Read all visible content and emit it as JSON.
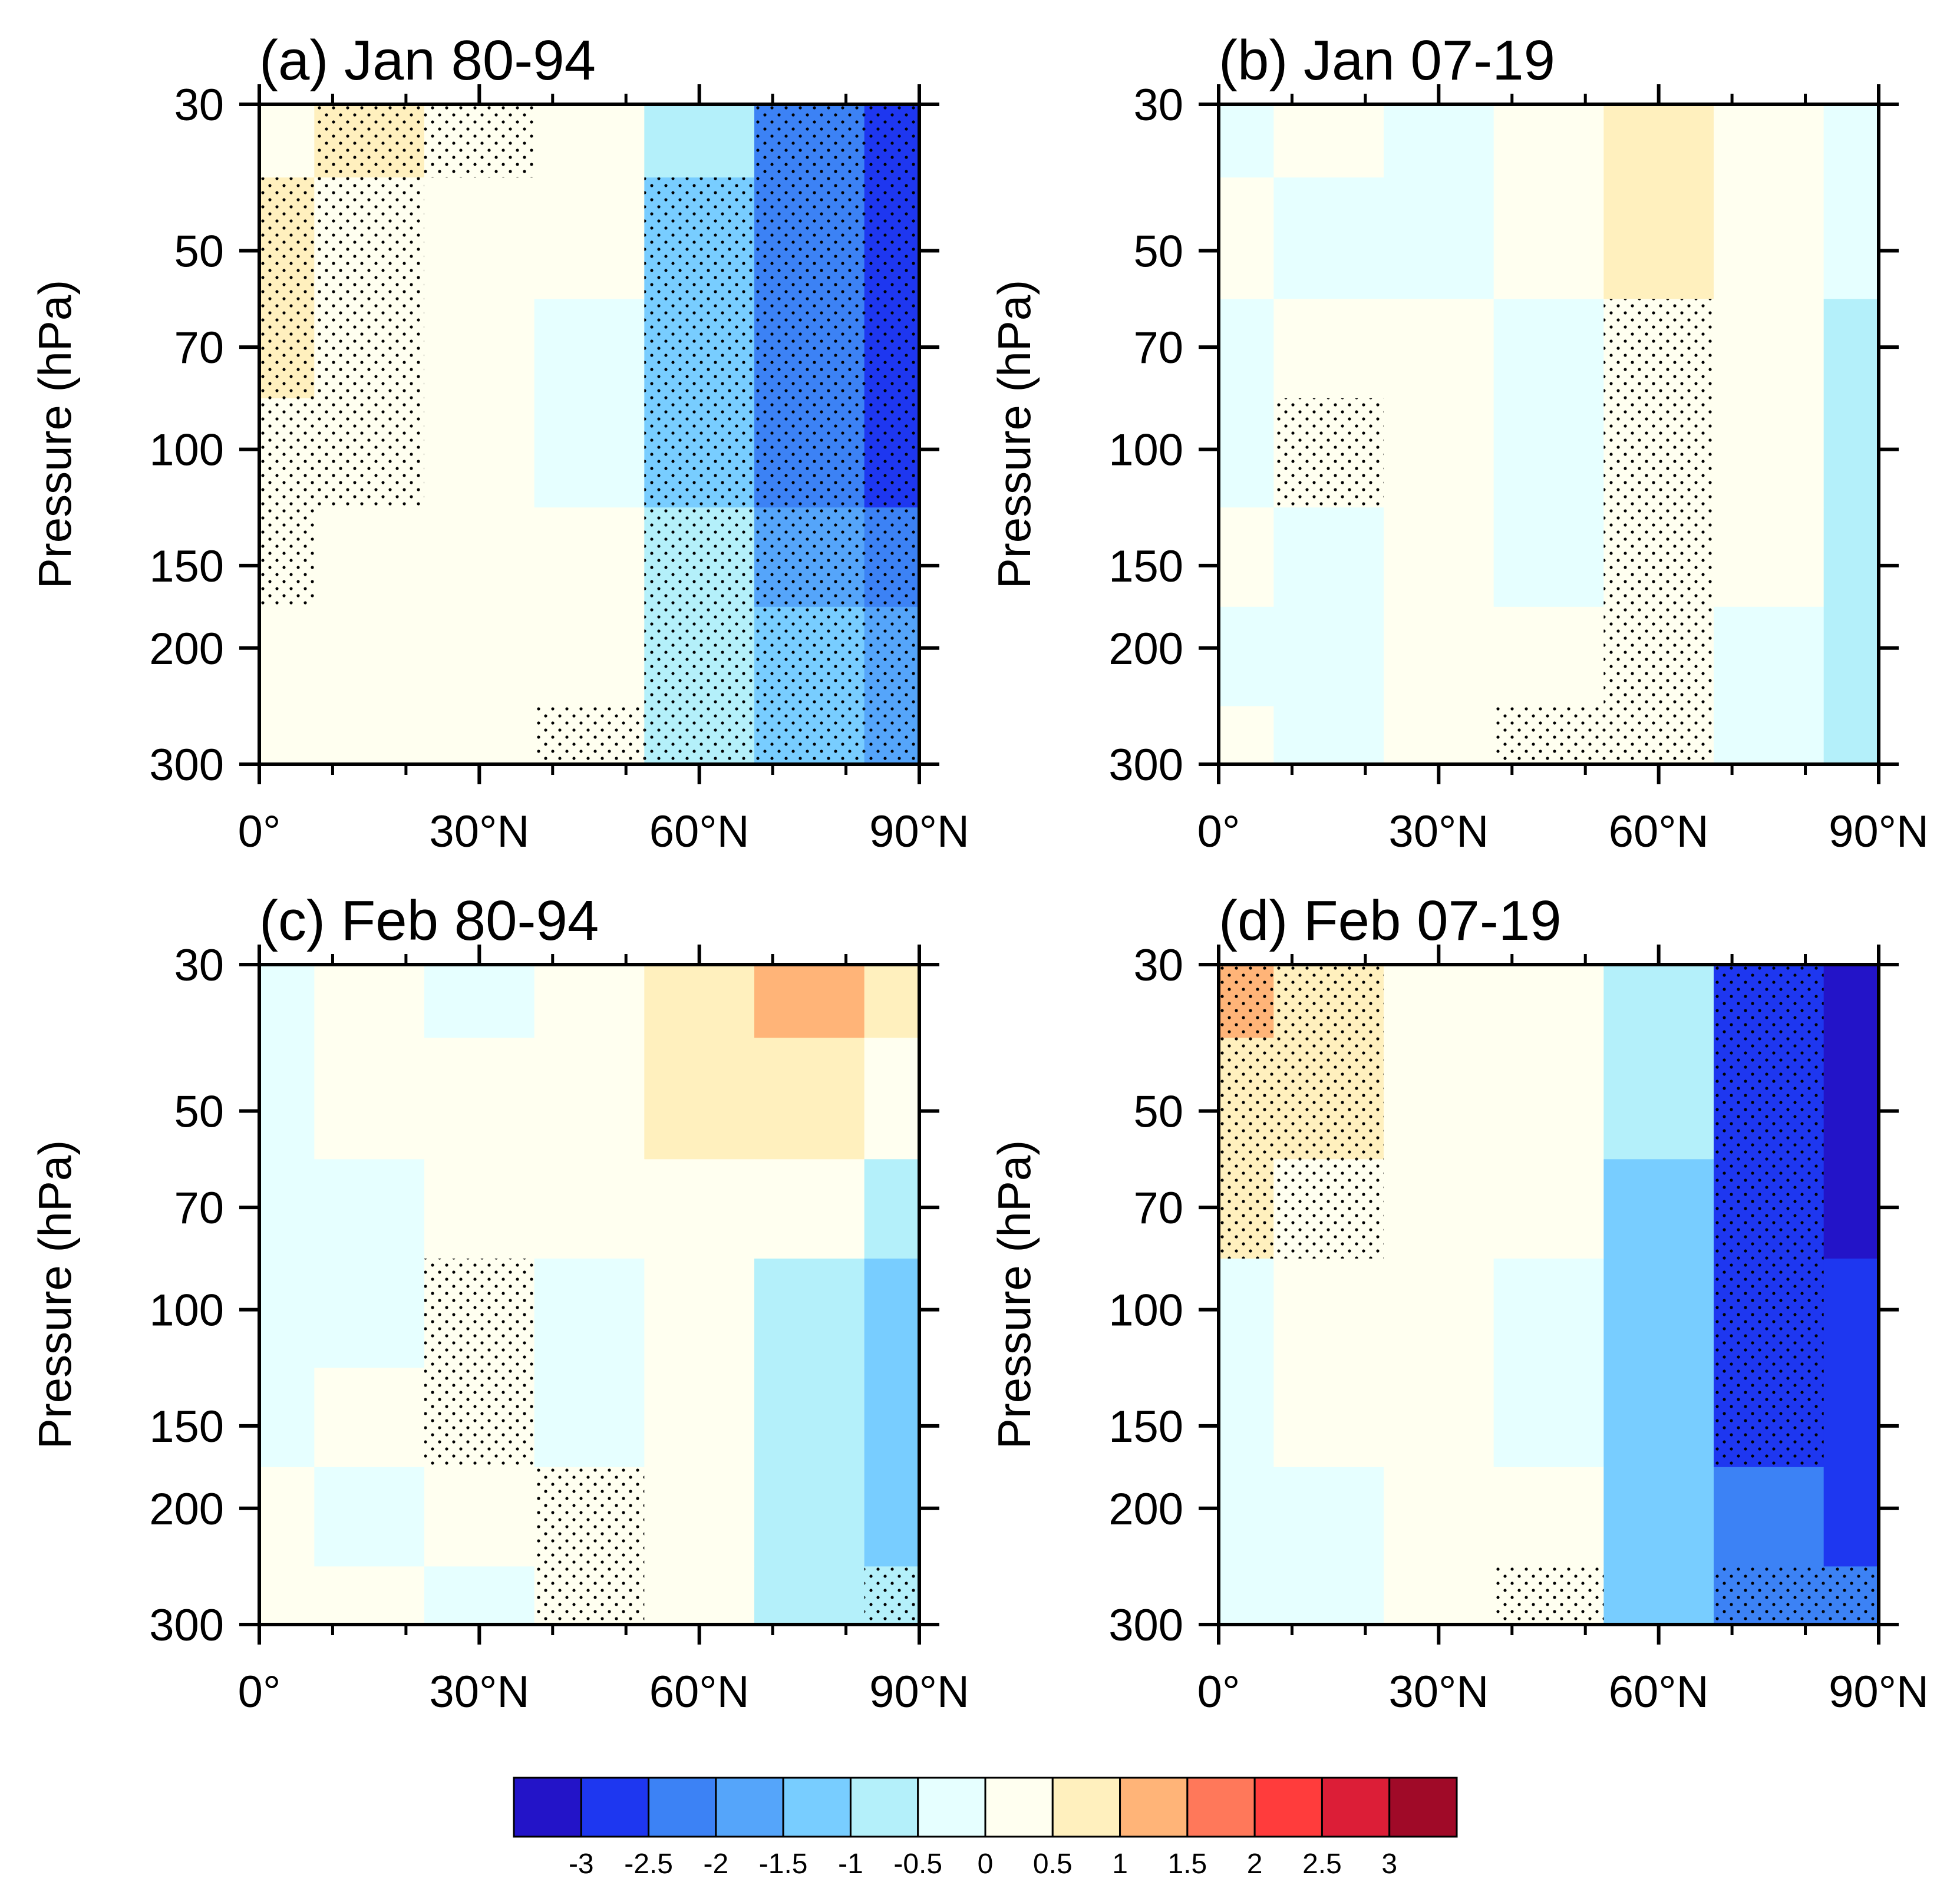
{
  "figure": {
    "colorbar": {
      "colors": [
        "#2314c8",
        "#1e37f0",
        "#3c82f5",
        "#55a5fa",
        "#78cdff",
        "#b4f0fa",
        "#e6ffff",
        "#fffff0",
        "#fff0be",
        "#ffb478",
        "#ff785a",
        "#ff3c3c",
        "#dc1e37",
        "#a00a28"
      ],
      "levels": [
        "-3",
        "-2.5",
        "-2",
        "-1.5",
        "-1",
        "-0.5",
        "0",
        "0.5",
        "1",
        "1.5",
        "2",
        "2.5",
        "3"
      ],
      "level_values": [
        -3,
        -2.5,
        -2,
        -1.5,
        -1,
        -0.5,
        0,
        0.5,
        1,
        1.5,
        2,
        2.5,
        3
      ]
    }
  },
  "chart_data": [
    {
      "type": "heatmap",
      "title": "(a) Jan 80-94",
      "ylabel": "Pressure (hPa)",
      "xlabel": "",
      "x_ticks": [
        "0°",
        "30°N",
        "60°N",
        "90°N"
      ],
      "x_tick_values": [
        0,
        30,
        60,
        90
      ],
      "y_ticks": [
        "30",
        "50",
        "70",
        "100",
        "150",
        "200",
        "300"
      ],
      "y_tick_values": [
        30,
        50,
        70,
        100,
        150,
        200,
        300
      ],
      "xlim": [
        0,
        90
      ],
      "ylim": [
        300,
        30
      ],
      "lat": [
        0,
        15,
        30,
        45,
        60,
        75,
        90
      ],
      "lev": [
        30,
        50,
        70,
        100,
        150,
        200,
        300
      ],
      "values": [
        [
          0.4,
          0.7,
          0.3,
          0.2,
          -0.9,
          -2.2,
          -3.0
        ],
        [
          0.6,
          0.4,
          0.2,
          0.1,
          -1.1,
          -2.3,
          -2.8
        ],
        [
          0.7,
          0.3,
          0.1,
          -0.2,
          -1.3,
          -2.3,
          -2.9
        ],
        [
          0.3,
          0.2,
          0.1,
          -0.2,
          -1.4,
          -2.2,
          -2.7
        ],
        [
          0.2,
          0.1,
          0.2,
          0.1,
          -1.0,
          -1.8,
          -2.3
        ],
        [
          0.2,
          0.1,
          0.2,
          0.2,
          -0.8,
          -1.5,
          -2.0
        ],
        [
          0.2,
          0.1,
          0.2,
          0.2,
          -0.6,
          -1.2,
          -1.7
        ]
      ],
      "stippled": [
        [
          0,
          1,
          1,
          0,
          0,
          1,
          1
        ],
        [
          1,
          1,
          0,
          0,
          1,
          1,
          1
        ],
        [
          1,
          1,
          0,
          0,
          1,
          1,
          1
        ],
        [
          1,
          1,
          0,
          0,
          1,
          1,
          1
        ],
        [
          1,
          0,
          0,
          0,
          1,
          1,
          1
        ],
        [
          0,
          0,
          0,
          0,
          1,
          1,
          1
        ],
        [
          0,
          0,
          0,
          1,
          1,
          1,
          1
        ]
      ]
    },
    {
      "type": "heatmap",
      "title": "(b) Jan 07-19",
      "ylabel": "Pressure (hPa)",
      "xlabel": "",
      "x_ticks": [
        "0°",
        "30°N",
        "60°N",
        "90°N"
      ],
      "x_tick_values": [
        0,
        30,
        60,
        90
      ],
      "y_ticks": [
        "30",
        "50",
        "70",
        "100",
        "150",
        "200",
        "300"
      ],
      "y_tick_values": [
        30,
        50,
        70,
        100,
        150,
        200,
        300
      ],
      "xlim": [
        0,
        90
      ],
      "ylim": [
        300,
        30
      ],
      "lat": [
        0,
        15,
        30,
        45,
        60,
        75,
        90
      ],
      "lev": [
        30,
        50,
        70,
        100,
        150,
        200,
        300
      ],
      "values": [
        [
          -0.2,
          0.1,
          -0.2,
          0.2,
          0.7,
          0.3,
          -0.1
        ],
        [
          0.3,
          -0.1,
          -0.2,
          0.2,
          0.7,
          0.3,
          -0.3
        ],
        [
          -0.1,
          0.1,
          0.3,
          -0.2,
          0.3,
          0.2,
          -0.6
        ],
        [
          -0.1,
          0.3,
          0.3,
          -0.2,
          0.2,
          0.2,
          -0.7
        ],
        [
          0.2,
          -0.1,
          0.3,
          -0.3,
          0.2,
          0.2,
          -0.7
        ],
        [
          -0.1,
          -0.1,
          0.2,
          0.2,
          0.2,
          -0.2,
          -0.8
        ],
        [
          0.1,
          -0.2,
          0.2,
          0.2,
          0.2,
          -0.2,
          -0.9
        ]
      ],
      "stippled": [
        [
          0,
          0,
          0,
          0,
          0,
          0,
          0
        ],
        [
          0,
          0,
          0,
          0,
          0,
          0,
          0
        ],
        [
          0,
          0,
          0,
          0,
          1,
          0,
          0
        ],
        [
          0,
          1,
          0,
          0,
          1,
          0,
          0
        ],
        [
          0,
          0,
          0,
          0,
          1,
          0,
          0
        ],
        [
          0,
          0,
          0,
          0,
          1,
          0,
          0
        ],
        [
          0,
          0,
          0,
          1,
          1,
          0,
          0
        ]
      ]
    },
    {
      "type": "heatmap",
      "title": "(c) Feb 80-94",
      "ylabel": "Pressure (hPa)",
      "xlabel": "",
      "x_ticks": [
        "0°",
        "30°N",
        "60°N",
        "90°N"
      ],
      "x_tick_values": [
        0,
        30,
        60,
        90
      ],
      "y_ticks": [
        "30",
        "50",
        "70",
        "100",
        "150",
        "200",
        "300"
      ],
      "y_tick_values": [
        30,
        50,
        70,
        100,
        150,
        200,
        300
      ],
      "xlim": [
        0,
        90
      ],
      "ylim": [
        300,
        30
      ],
      "lat": [
        0,
        15,
        30,
        45,
        60,
        75,
        90
      ],
      "lev": [
        30,
        50,
        70,
        100,
        150,
        200,
        300
      ],
      "values": [
        [
          -0.1,
          0.2,
          -0.2,
          0.2,
          0.7,
          1.3,
          0.7
        ],
        [
          -0.1,
          0.2,
          0.2,
          0.2,
          0.6,
          0.5,
          0.3
        ],
        [
          -0.1,
          -0.1,
          0.2,
          0.2,
          0.4,
          0.2,
          -0.6
        ],
        [
          -0.1,
          -0.1,
          0.2,
          -0.2,
          0.3,
          -0.6,
          -1.1
        ],
        [
          -0.1,
          0.2,
          0.2,
          -0.2,
          0.2,
          -0.8,
          -1.3
        ],
        [
          0.2,
          -0.1,
          0.2,
          0.2,
          0.2,
          -1.0,
          -1.4
        ],
        [
          0.3,
          0.2,
          -0.2,
          0.2,
          0.2,
          -0.7,
          -1.0
        ]
      ],
      "stippled": [
        [
          0,
          0,
          0,
          0,
          0,
          0,
          0
        ],
        [
          0,
          0,
          0,
          0,
          0,
          0,
          0
        ],
        [
          0,
          0,
          0,
          0,
          0,
          0,
          0
        ],
        [
          0,
          0,
          1,
          0,
          0,
          0,
          0
        ],
        [
          0,
          0,
          1,
          0,
          0,
          0,
          0
        ],
        [
          0,
          0,
          0,
          1,
          0,
          0,
          0
        ],
        [
          0,
          0,
          0,
          1,
          0,
          0,
          1
        ]
      ]
    },
    {
      "type": "heatmap",
      "title": "(d) Feb 07-19",
      "ylabel": "Pressure (hPa)",
      "xlabel": "",
      "x_ticks": [
        "0°",
        "30°N",
        "60°N",
        "90°N"
      ],
      "x_tick_values": [
        0,
        30,
        60,
        90
      ],
      "y_ticks": [
        "30",
        "50",
        "70",
        "100",
        "150",
        "200",
        "300"
      ],
      "y_tick_values": [
        30,
        50,
        70,
        100,
        150,
        200,
        300
      ],
      "xlim": [
        0,
        90
      ],
      "ylim": [
        300,
        30
      ],
      "lat": [
        0,
        15,
        30,
        45,
        60,
        75,
        90
      ],
      "lev": [
        30,
        50,
        70,
        100,
        150,
        200,
        300
      ],
      "values": [
        [
          1.4,
          0.6,
          0.3,
          0.2,
          -0.7,
          -2.8,
          -3.3
        ],
        [
          0.8,
          0.6,
          0.3,
          0.2,
          -1.0,
          -2.9,
          -3.2
        ],
        [
          0.7,
          0.3,
          0.2,
          0.2,
          -1.2,
          -2.9,
          -3.1
        ],
        [
          -0.1,
          0.2,
          0.2,
          -0.2,
          -1.3,
          -2.8,
          -3.0
        ],
        [
          -0.2,
          0.2,
          0.2,
          -0.2,
          -1.4,
          -2.6,
          -2.8
        ],
        [
          -0.2,
          -0.1,
          0.2,
          0.2,
          -1.3,
          -2.3,
          -2.6
        ],
        [
          -0.1,
          -0.2,
          0.2,
          0.2,
          -1.2,
          -2.1,
          -2.3
        ]
      ],
      "stippled": [
        [
          1,
          1,
          0,
          0,
          0,
          1,
          0
        ],
        [
          1,
          1,
          0,
          0,
          0,
          1,
          0
        ],
        [
          1,
          1,
          0,
          0,
          0,
          1,
          0
        ],
        [
          0,
          0,
          0,
          0,
          0,
          1,
          0
        ],
        [
          0,
          0,
          0,
          0,
          0,
          1,
          0
        ],
        [
          0,
          0,
          0,
          0,
          0,
          0,
          0
        ],
        [
          0,
          0,
          0,
          1,
          0,
          1,
          1
        ]
      ]
    }
  ]
}
